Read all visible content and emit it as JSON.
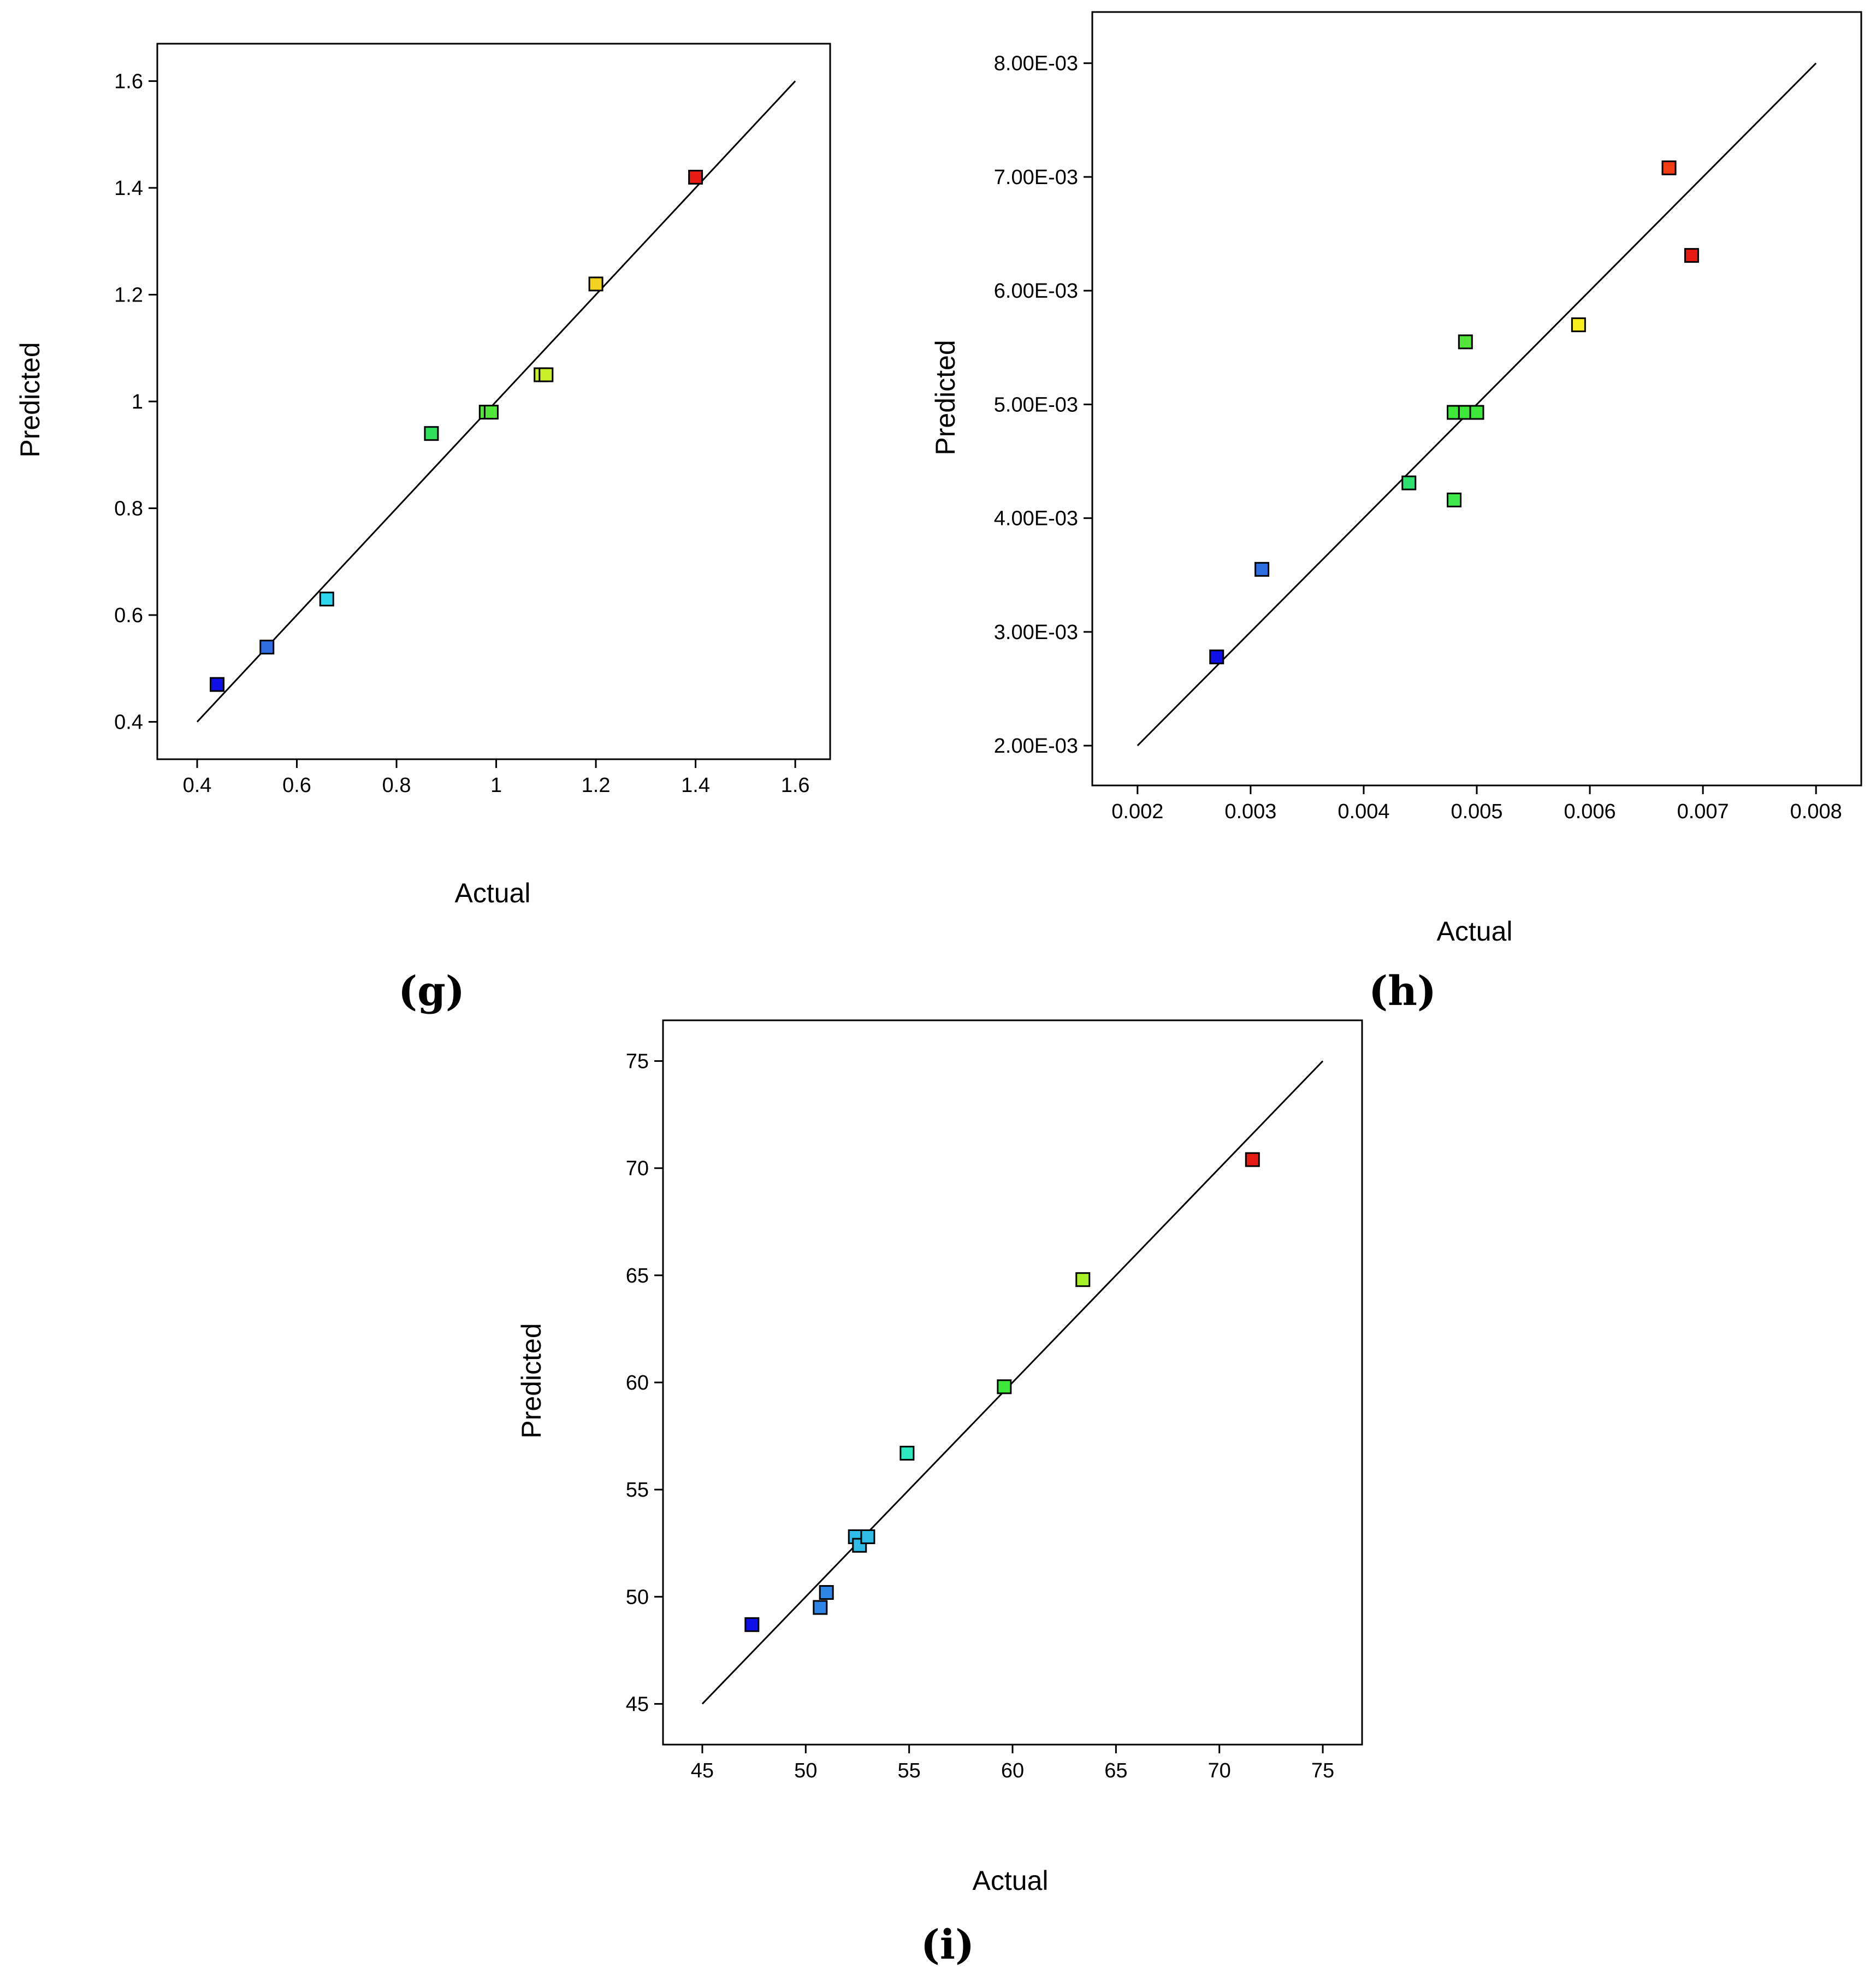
{
  "chart_data": [
    {
      "panel": "(g)",
      "type": "scatter",
      "xlabel": "Actual",
      "ylabel": "Predicted",
      "xlim": [
        0.32,
        1.67
      ],
      "ylim": [
        0.33,
        1.67
      ],
      "xticks": [
        0.4,
        0.6,
        0.8,
        1,
        1.2,
        1.4,
        1.6
      ],
      "yticks": [
        0.4,
        0.6,
        0.8,
        1,
        1.2,
        1.4,
        1.6
      ],
      "xtick_labels": [
        "0.4",
        "0.6",
        "0.8",
        "1",
        "1.2",
        "1.4",
        "1.6"
      ],
      "ytick_labels": [
        "0.4",
        "0.6",
        "0.8",
        "1",
        "1.2",
        "1.4",
        "1.6"
      ],
      "fit_line": [
        [
          0.4,
          0.4
        ],
        [
          1.6,
          1.6
        ]
      ],
      "points": [
        {
          "x": 0.44,
          "y": 0.47,
          "color": "#1010e8"
        },
        {
          "x": 0.54,
          "y": 0.54,
          "color": "#2f6ee0"
        },
        {
          "x": 0.66,
          "y": 0.63,
          "color": "#2fd6ee"
        },
        {
          "x": 0.87,
          "y": 0.94,
          "color": "#2ee05a"
        },
        {
          "x": 0.98,
          "y": 0.98,
          "color": "#52e63a"
        },
        {
          "x": 0.99,
          "y": 0.98,
          "color": "#52e63a"
        },
        {
          "x": 1.09,
          "y": 1.05,
          "color": "#c8f02a"
        },
        {
          "x": 1.1,
          "y": 1.05,
          "color": "#c8f02a"
        },
        {
          "x": 1.2,
          "y": 1.22,
          "color": "#f2d21e"
        },
        {
          "x": 1.4,
          "y": 1.42,
          "color": "#e81a14"
        }
      ]
    },
    {
      "panel": "(h)",
      "type": "scatter",
      "xlabel": "Actual",
      "ylabel": "Predicted",
      "xlim": [
        0.0016,
        0.0084
      ],
      "ylim": [
        0.00165,
        0.00845
      ],
      "xticks": [
        0.002,
        0.003,
        0.004,
        0.005,
        0.006,
        0.007,
        0.008
      ],
      "yticks": [
        0.002,
        0.003,
        0.004,
        0.005,
        0.006,
        0.007,
        0.008
      ],
      "xtick_labels": [
        "0.002",
        "0.003",
        "0.004",
        "0.005",
        "0.006",
        "0.007",
        "0.008"
      ],
      "ytick_labels": [
        "2.00E-03",
        "3.00E-03",
        "4.00E-03",
        "5.00E-03",
        "6.00E-03",
        "7.00E-03",
        "8.00E-03"
      ],
      "fit_line": [
        [
          0.002,
          0.002
        ],
        [
          0.008,
          0.008
        ]
      ],
      "points": [
        {
          "x": 0.0027,
          "y": 0.00278,
          "color": "#1010e8"
        },
        {
          "x": 0.0031,
          "y": 0.00355,
          "color": "#2f6ee0"
        },
        {
          "x": 0.0044,
          "y": 0.00431,
          "color": "#2ee070"
        },
        {
          "x": 0.0048,
          "y": 0.00416,
          "color": "#3ee84a"
        },
        {
          "x": 0.0048,
          "y": 0.00493,
          "color": "#3ee83a"
        },
        {
          "x": 0.0049,
          "y": 0.00493,
          "color": "#3ee83a"
        },
        {
          "x": 0.005,
          "y": 0.00493,
          "color": "#3ee83a"
        },
        {
          "x": 0.0049,
          "y": 0.00555,
          "color": "#52e63a"
        },
        {
          "x": 0.0059,
          "y": 0.0057,
          "color": "#f6ee1e"
        },
        {
          "x": 0.0067,
          "y": 0.00708,
          "color": "#f23c14"
        },
        {
          "x": 0.0069,
          "y": 0.00631,
          "color": "#e81a14"
        }
      ]
    },
    {
      "panel": "(i)",
      "type": "scatter",
      "xlabel": "Actual",
      "ylabel": "Predicted",
      "xlim": [
        43.1,
        76.9
      ],
      "ylim": [
        43.1,
        76.9
      ],
      "xticks": [
        45,
        50,
        55,
        60,
        65,
        70,
        75
      ],
      "yticks": [
        45,
        50,
        55,
        60,
        65,
        70,
        75
      ],
      "xtick_labels": [
        "45",
        "50",
        "55",
        "60",
        "65",
        "70",
        "75"
      ],
      "ytick_labels": [
        "45",
        "50",
        "55",
        "60",
        "65",
        "70",
        "75"
      ],
      "fit_line": [
        [
          45,
          45
        ],
        [
          75,
          75
        ]
      ],
      "points": [
        {
          "x": 47.4,
          "y": 48.7,
          "color": "#1010e8"
        },
        {
          "x": 50.7,
          "y": 49.5,
          "color": "#2f86e6"
        },
        {
          "x": 51.0,
          "y": 50.2,
          "color": "#2f86e6"
        },
        {
          "x": 52.4,
          "y": 52.8,
          "color": "#2fbce8"
        },
        {
          "x": 52.6,
          "y": 52.4,
          "color": "#2fbce8"
        },
        {
          "x": 53.0,
          "y": 52.8,
          "color": "#2fbce8"
        },
        {
          "x": 54.9,
          "y": 56.7,
          "color": "#2ee8c0"
        },
        {
          "x": 59.6,
          "y": 59.8,
          "color": "#3ee83a"
        },
        {
          "x": 63.4,
          "y": 64.8,
          "color": "#a8f028"
        },
        {
          "x": 71.6,
          "y": 70.4,
          "color": "#e81a14"
        }
      ]
    }
  ]
}
